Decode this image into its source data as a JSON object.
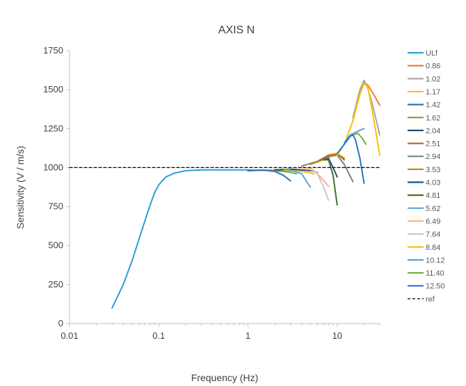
{
  "chart_data": {
    "type": "line",
    "title": "AXIS N",
    "xlabel": "Frequency (Hz)",
    "ylabel": "Sensitivity (V / m/s)",
    "x_scale": "log",
    "xlim": [
      0.01,
      30
    ],
    "ylim": [
      0,
      1750
    ],
    "x_ticks": [
      "0.01",
      "0.1",
      "1",
      "10"
    ],
    "x_tick_values": [
      0.01,
      0.1,
      1,
      10
    ],
    "y_ticks": [
      0,
      250,
      500,
      750,
      1000,
      1250,
      1500,
      1750
    ],
    "grid": false,
    "legend_position": "right",
    "series": [
      {
        "name": "ULf",
        "color": "#2e9bd6",
        "dash": false,
        "x": [
          0.03,
          0.04,
          0.05,
          0.06,
          0.07,
          0.08,
          0.09,
          0.1,
          0.12,
          0.15,
          0.2,
          0.3,
          0.5,
          1,
          2,
          3
        ],
        "y": [
          100,
          250,
          400,
          540,
          660,
          760,
          840,
          890,
          940,
          965,
          980,
          985,
          985,
          985,
          980,
          975
        ]
      },
      {
        "name": "0.86",
        "color": "#ed7d31",
        "dash": false,
        "x": [
          1,
          2,
          3,
          4,
          5,
          6
        ],
        "y": [
          980,
          985,
          990,
          985,
          980,
          970
        ]
      },
      {
        "name": "1.02",
        "color": "#a5a5a5",
        "dash": false,
        "x": [
          1,
          2,
          3
        ],
        "y": [
          980,
          985,
          980
        ]
      },
      {
        "name": "1.17",
        "color": "#ffc000",
        "dash": false,
        "x": [
          2,
          3,
          4,
          5,
          5.5
        ],
        "y": [
          975,
          980,
          975,
          965,
          960
        ]
      },
      {
        "name": "1.42",
        "color": "#2f6fb7",
        "dash": false,
        "x": [
          1,
          1.5,
          2,
          2.5,
          3
        ],
        "y": [
          980,
          985,
          975,
          950,
          915
        ]
      },
      {
        "name": "1.62",
        "color": "#70ad47",
        "dash": false,
        "x": [
          2,
          2.5,
          3,
          3.5
        ],
        "y": [
          980,
          975,
          970,
          960
        ]
      },
      {
        "name": "2.04",
        "color": "#1f4e79",
        "dash": false,
        "x": [
          2,
          3,
          4,
          5
        ],
        "y": [
          985,
          990,
          985,
          980
        ]
      },
      {
        "name": "2.51",
        "color": "#c55a11",
        "dash": false,
        "x": [
          6,
          8,
          10,
          12
        ],
        "y": [
          1040,
          1080,
          1090,
          1050
        ]
      },
      {
        "name": "2.94",
        "color": "#7f7f7f",
        "dash": false,
        "x": [
          4,
          6,
          8,
          10,
          12,
          15
        ],
        "y": [
          1010,
          1040,
          1070,
          1080,
          1020,
          910
        ]
      },
      {
        "name": "3.53",
        "color": "#bf8f00",
        "dash": false,
        "x": [
          5,
          7,
          9,
          10,
          12
        ],
        "y": [
          1020,
          1050,
          1080,
          1090,
          1060
        ]
      },
      {
        "name": "4.03",
        "color": "#24518c",
        "dash": false,
        "x": [
          7,
          8,
          9,
          10
        ],
        "y": [
          1050,
          1060,
          1000,
          940
        ]
      },
      {
        "name": "4.81",
        "color": "#43752a",
        "dash": false,
        "x": [
          7,
          8,
          9,
          10
        ],
        "y": [
          1050,
          1050,
          950,
          760
        ]
      },
      {
        "name": "5.62",
        "color": "#5ba4de",
        "dash": false,
        "x": [
          2.5,
          3,
          4,
          5
        ],
        "y": [
          990,
          985,
          960,
          875
        ]
      },
      {
        "name": "6.49",
        "color": "#f4b183",
        "dash": false,
        "x": [
          4,
          5,
          6,
          7,
          8
        ],
        "y": [
          1000,
          995,
          960,
          920,
          880
        ]
      },
      {
        "name": "7.64",
        "color": "#c9c9c9",
        "dash": false,
        "x": [
          5,
          6,
          7,
          8
        ],
        "y": [
          1000,
          960,
          880,
          790
        ]
      },
      {
        "name": "8.84",
        "color": "#ffc000",
        "dash": false,
        "x": [
          10,
          12,
          15,
          18,
          20,
          22,
          25,
          30
        ],
        "y": [
          1080,
          1150,
          1300,
          1470,
          1540,
          1520,
          1350,
          1080
        ]
      },
      {
        "name": "10.12",
        "color": "#5b9bd5",
        "dash": false,
        "x": [
          12,
          14,
          16,
          18,
          20
        ],
        "y": [
          1160,
          1210,
          1225,
          1240,
          1250
        ]
      },
      {
        "name": "11.40",
        "color": "#70ad47",
        "dash": false,
        "x": [
          15,
          17,
          19,
          21
        ],
        "y": [
          1210,
          1220,
          1190,
          1150
        ]
      },
      {
        "name": "12.50",
        "color": "#2276c3",
        "dash": false,
        "x": [
          10,
          12,
          14,
          15,
          16,
          18,
          20
        ],
        "y": [
          1090,
          1150,
          1200,
          1210,
          1180,
          1060,
          900
        ]
      },
      {
        "name": "ref",
        "color": "#000000",
        "dash": true,
        "x": [
          0.01,
          30
        ],
        "y": [
          1000,
          1000
        ]
      }
    ],
    "extra_traces": [
      {
        "color": "#ed7d31",
        "x": [
          15,
          18,
          20,
          22,
          25,
          30
        ],
        "y": [
          1300,
          1480,
          1545,
          1530,
          1480,
          1400
        ]
      },
      {
        "color": "#a5a5a5",
        "x": [
          15,
          18,
          20,
          22,
          25,
          30
        ],
        "y": [
          1320,
          1500,
          1560,
          1510,
          1400,
          1210
        ]
      }
    ]
  }
}
